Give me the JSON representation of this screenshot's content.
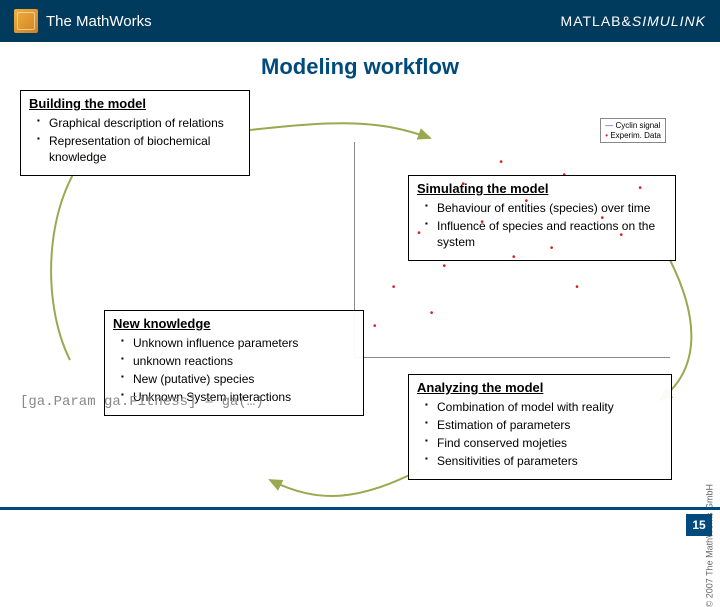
{
  "header": {
    "brand": "The MathWorks",
    "products_a": "MATLAB",
    "products_amp": "&",
    "products_b": "SIMULINK"
  },
  "page": {
    "title": "Modeling workflow",
    "number": "15",
    "copyright": "© 2007 The MathWorks GmbH"
  },
  "code_line": "[ga.Param ga.Fitness] = ga(…)",
  "boxes": {
    "build": {
      "title": "Building the model",
      "items": [
        "Graphical description of relations",
        "Representation of biochemical knowledge"
      ]
    },
    "sim": {
      "title": "Simulating the model",
      "items": [
        "Behaviour of entities (species) over time",
        "Influence of species and reactions on the system"
      ]
    },
    "newk": {
      "title": "New knowledge",
      "items": [
        "Unknown influence parameters",
        "unknown reactions",
        "New (putative) species",
        "Unknown System interactions"
      ]
    },
    "ana": {
      "title": "Analyzing the model",
      "items": [
        "Combination of model with reality",
        "Estimation of parameters",
        "Find conserved mojeties",
        "Sensitivities of parameters"
      ]
    }
  },
  "workflow_arrows": {
    "color": "#9aa84f",
    "stroke_width": 2,
    "paths": [
      "M 250,50 C 340,40 380,40 430,58",
      "M 670,180 C 700,240 700,290 660,320",
      "M 420,390 C 360,420 320,425 270,400",
      "M 70,280 C 40,220 45,120 90,70"
    ],
    "arrowheads": [
      {
        "at": "430,58",
        "rot": 20
      },
      {
        "at": "660,320",
        "rot": 130
      },
      {
        "at": "270,400",
        "rot": 210
      },
      {
        "at": "90,70",
        "rot": -60
      }
    ]
  },
  "chart": {
    "legend": [
      "Cyclin signal",
      "Experim. Data"
    ],
    "scatter_color": "#d02020",
    "line_color_1": "#2040d0",
    "line_color_2": "#1a9010",
    "xlim": [
      0,
      80
    ],
    "ylim": [
      0,
      0.7
    ],
    "points": [
      {
        "x": 6,
        "y": 12
      },
      {
        "x": 12,
        "y": 30
      },
      {
        "x": 20,
        "y": 55
      },
      {
        "x": 28,
        "y": 40
      },
      {
        "x": 34,
        "y": 78
      },
      {
        "x": 40,
        "y": 60
      },
      {
        "x": 46,
        "y": 88
      },
      {
        "x": 54,
        "y": 70
      },
      {
        "x": 62,
        "y": 48
      },
      {
        "x": 70,
        "y": 30
      },
      {
        "x": 78,
        "y": 62
      },
      {
        "x": 84,
        "y": 54
      },
      {
        "x": 90,
        "y": 76
      },
      {
        "x": 24,
        "y": 18
      },
      {
        "x": 50,
        "y": 44
      },
      {
        "x": 66,
        "y": 82
      }
    ]
  }
}
